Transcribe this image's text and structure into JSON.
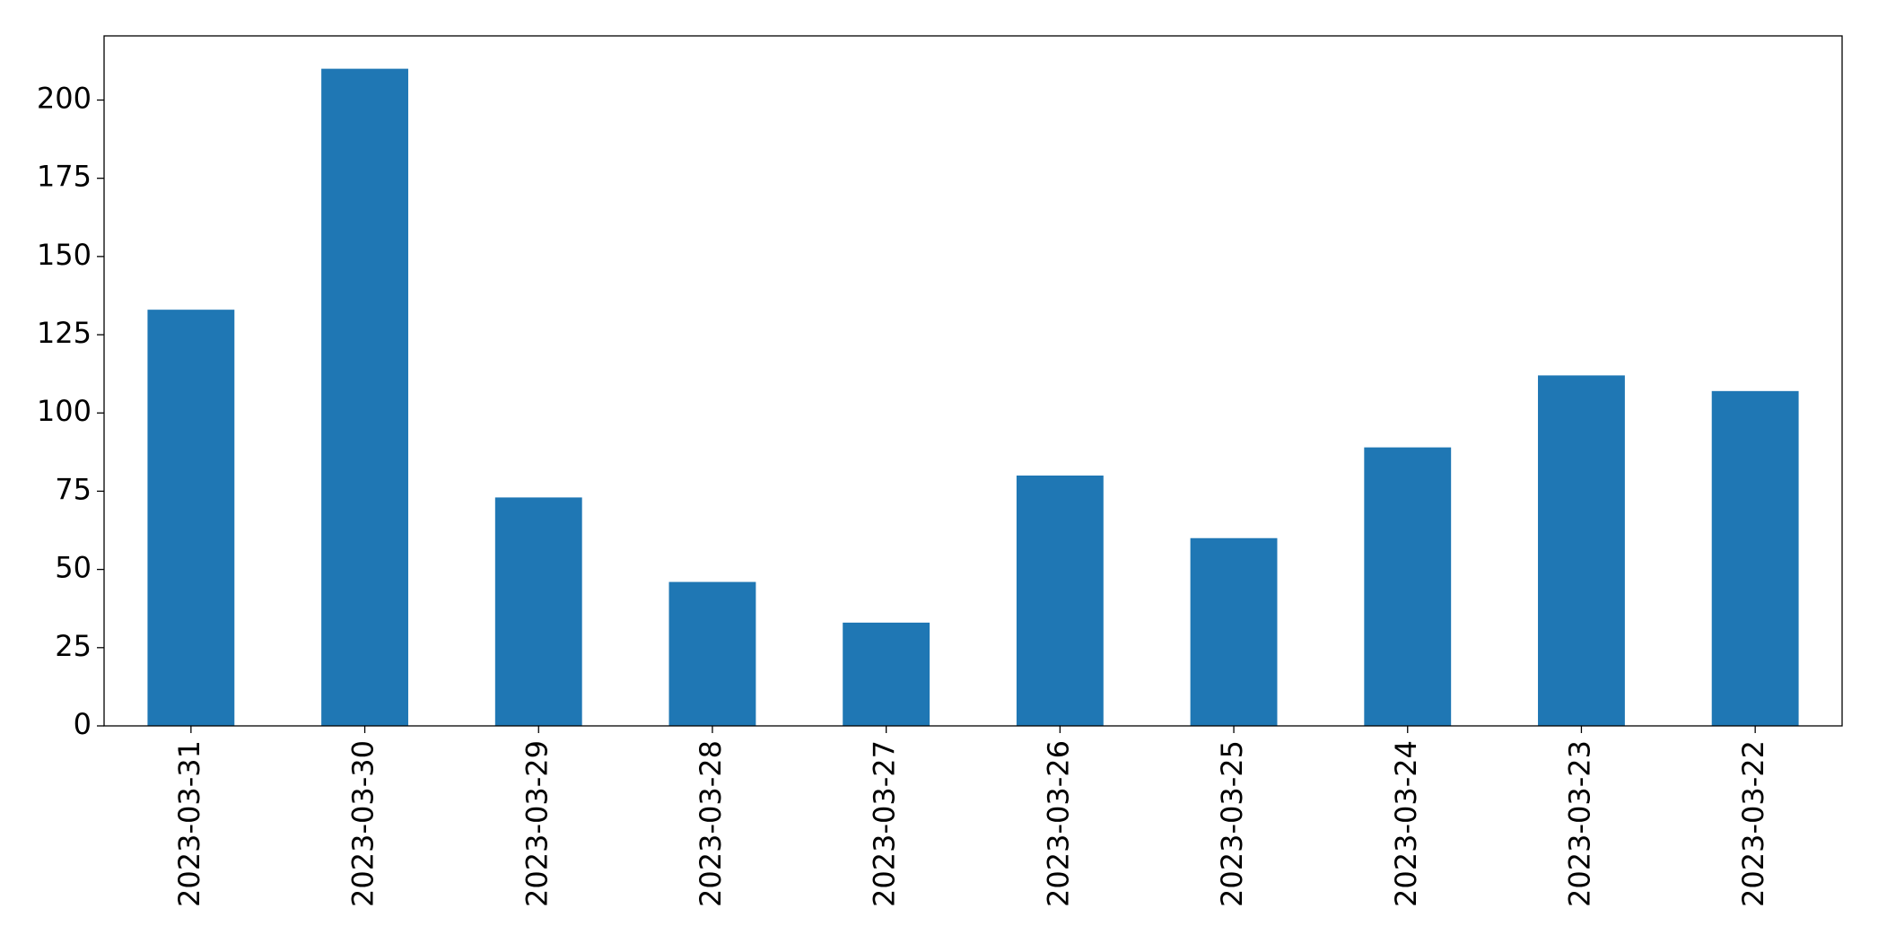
{
  "chart_data": {
    "type": "bar",
    "categories": [
      "2023-03-31",
      "2023-03-30",
      "2023-03-29",
      "2023-03-28",
      "2023-03-27",
      "2023-03-26",
      "2023-03-25",
      "2023-03-24",
      "2023-03-23",
      "2023-03-22"
    ],
    "values": [
      133,
      210,
      73,
      46,
      33,
      80,
      60,
      89,
      112,
      107
    ],
    "color": "#1f77b4",
    "ylim": [
      0,
      220.5
    ],
    "yticks": [
      0,
      25,
      50,
      75,
      100,
      125,
      150,
      175,
      200
    ],
    "grid": false
  }
}
